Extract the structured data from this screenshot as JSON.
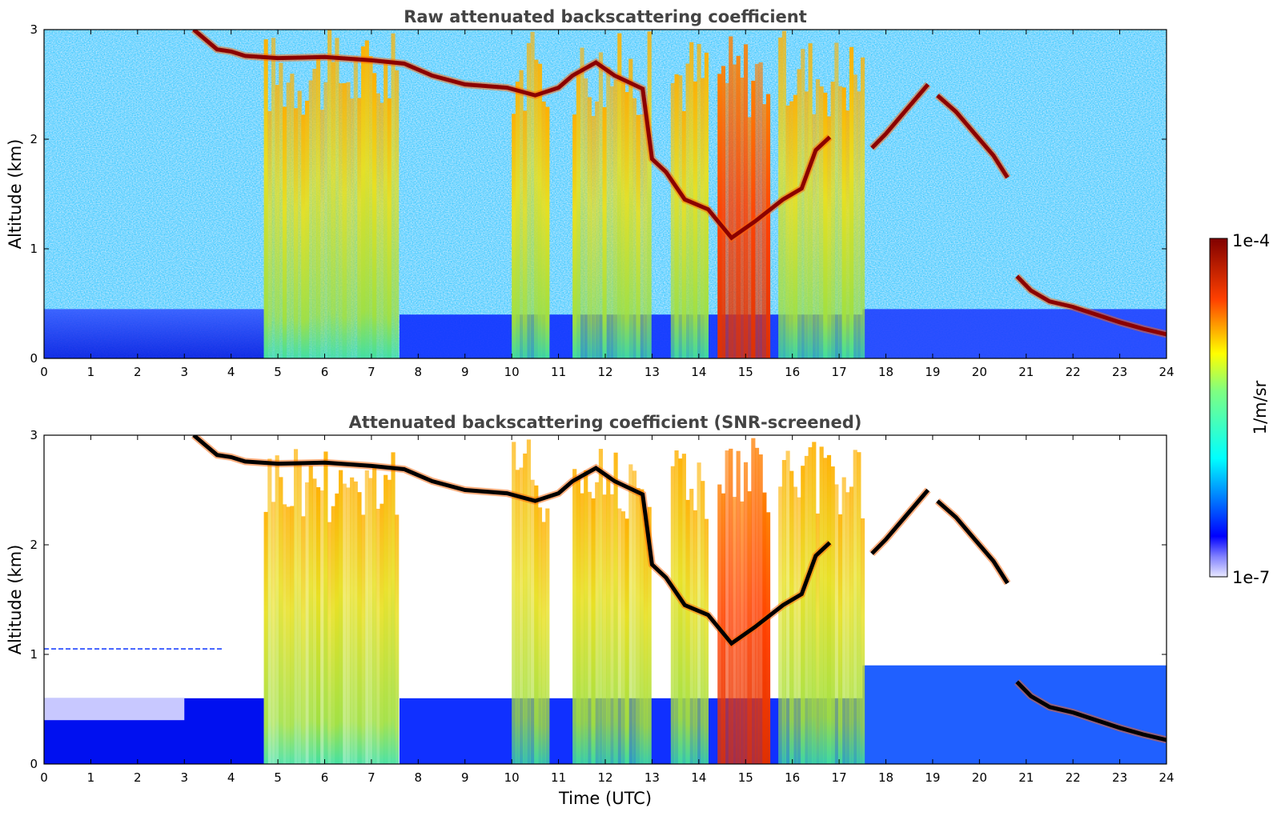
{
  "chart_data": [
    {
      "type": "heatmap",
      "title": "Raw attenuated backscattering coefficient",
      "xlabel": "",
      "ylabel": "Altitude (km)",
      "xlim": [
        0,
        24
      ],
      "ylim": [
        0,
        3
      ],
      "xticks": [
        "0",
        "1",
        "2",
        "3",
        "4",
        "5",
        "6",
        "7",
        "8",
        "9",
        "10",
        "11",
        "12",
        "13",
        "14",
        "15",
        "16",
        "17",
        "18",
        "19",
        "20",
        "21",
        "22",
        "23",
        "24"
      ],
      "yticks": [
        "0",
        "1",
        "2",
        "3"
      ],
      "screened": false
    },
    {
      "type": "heatmap",
      "title": "Attenuated backscattering coefficient (SNR-screened)",
      "xlabel": "Time (UTC)",
      "ylabel": "Altitude (km)",
      "xlim": [
        0,
        24
      ],
      "ylim": [
        0,
        3
      ],
      "xticks": [
        "0",
        "1",
        "2",
        "3",
        "4",
        "5",
        "6",
        "7",
        "8",
        "9",
        "10",
        "11",
        "12",
        "13",
        "14",
        "15",
        "16",
        "17",
        "18",
        "19",
        "20",
        "21",
        "22",
        "23",
        "24"
      ],
      "yticks": [
        "0",
        "1",
        "2",
        "3"
      ],
      "screened": true
    }
  ],
  "colorbar": {
    "label": "1/m/sr",
    "max_label": "1e-4",
    "min_label": "1e-7",
    "range": [
      1e-07,
      0.0001
    ],
    "scale": "log",
    "colormap": "jet"
  },
  "cloud_base_km": [
    [
      3.2,
      3.0
    ],
    [
      3.7,
      2.82
    ],
    [
      4.0,
      2.8
    ],
    [
      4.3,
      2.76
    ],
    [
      5.0,
      2.74
    ],
    [
      6.0,
      2.75
    ],
    [
      7.0,
      2.72
    ],
    [
      7.7,
      2.69
    ],
    [
      8.3,
      2.58
    ],
    [
      9.0,
      2.5
    ],
    [
      9.9,
      2.47
    ],
    [
      10.5,
      2.4
    ],
    [
      11.0,
      2.47
    ],
    [
      11.3,
      2.58
    ],
    [
      11.8,
      2.7
    ],
    [
      12.2,
      2.58
    ],
    [
      12.8,
      2.46
    ],
    [
      13.0,
      1.82
    ],
    [
      13.3,
      1.7
    ],
    [
      13.7,
      1.45
    ],
    [
      14.2,
      1.36
    ],
    [
      14.7,
      1.1
    ],
    [
      15.2,
      1.25
    ],
    [
      15.8,
      1.45
    ],
    [
      16.2,
      1.55
    ],
    [
      16.5,
      1.9
    ],
    [
      16.8,
      2.02
    ]
  ],
  "cloud_base_east_km": [
    [
      17.7,
      1.92
    ],
    [
      18.0,
      2.05
    ],
    [
      18.5,
      2.3
    ],
    [
      18.9,
      2.5
    ]
  ],
  "cloud_descend_km": [
    [
      19.1,
      2.4
    ],
    [
      19.5,
      2.25
    ],
    [
      19.9,
      2.05
    ],
    [
      20.3,
      1.85
    ],
    [
      20.6,
      1.65
    ]
  ],
  "low_cloud_km": [
    [
      20.8,
      0.75
    ],
    [
      21.1,
      0.62
    ],
    [
      21.5,
      0.52
    ],
    [
      22.0,
      0.47
    ],
    [
      22.5,
      0.4
    ],
    [
      23.0,
      0.33
    ],
    [
      23.5,
      0.27
    ],
    [
      24.0,
      0.22
    ]
  ],
  "precip_intervals_utc": [
    [
      4.7,
      7.6
    ],
    [
      10.0,
      10.8
    ],
    [
      11.3,
      13.0
    ],
    [
      13.4,
      14.2
    ],
    [
      14.4,
      15.5
    ],
    [
      15.7,
      17.5
    ]
  ],
  "colors": {
    "text": "#000000",
    "title": "#444444"
  }
}
